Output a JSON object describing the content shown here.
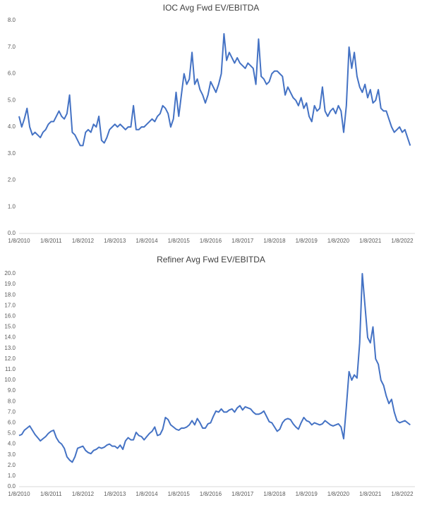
{
  "chart_data": [
    {
      "type": "line",
      "title": "IOC Avg Fwd EV/EBITDA",
      "categories": [
        "1/8/2010",
        null,
        null,
        null,
        null,
        null,
        null,
        null,
        null,
        null,
        null,
        null,
        "1/8/2011",
        null,
        null,
        null,
        null,
        null,
        null,
        null,
        null,
        null,
        null,
        null,
        "1/8/2012",
        null,
        null,
        null,
        null,
        null,
        null,
        null,
        null,
        null,
        null,
        null,
        "1/8/2013",
        null,
        null,
        null,
        null,
        null,
        null,
        null,
        null,
        null,
        null,
        null,
        "1/8/2014",
        null,
        null,
        null,
        null,
        null,
        null,
        null,
        null,
        null,
        null,
        null,
        "1/8/2015",
        null,
        null,
        null,
        null,
        null,
        null,
        null,
        null,
        null,
        null,
        null,
        "1/8/2016",
        null,
        null,
        null,
        null,
        null,
        null,
        null,
        null,
        null,
        null,
        null,
        "1/8/2017",
        null,
        null,
        null,
        null,
        null,
        null,
        null,
        null,
        null,
        null,
        null,
        "1/8/2018",
        null,
        null,
        null,
        null,
        null,
        null,
        null,
        null,
        null,
        null,
        null,
        "1/8/2019",
        null,
        null,
        null,
        null,
        null,
        null,
        null,
        null,
        null,
        null,
        null,
        "1/8/2020",
        null,
        null,
        null,
        null,
        null,
        null,
        null,
        null,
        null,
        null,
        null,
        "1/8/2021",
        null,
        null,
        null,
        null,
        null,
        null,
        null,
        null,
        null,
        null,
        null,
        "1/8/2022",
        null,
        null,
        null
      ],
      "values": [
        4.4,
        4.0,
        4.3,
        4.7,
        4.0,
        3.7,
        3.8,
        3.7,
        3.6,
        3.8,
        3.9,
        4.1,
        4.2,
        4.2,
        4.4,
        4.6,
        4.4,
        4.3,
        4.5,
        5.2,
        3.8,
        3.7,
        3.5,
        3.3,
        3.3,
        3.8,
        3.9,
        3.8,
        4.1,
        4.0,
        4.4,
        3.5,
        3.4,
        3.6,
        3.9,
        4.0,
        4.1,
        4.0,
        4.1,
        4.0,
        3.9,
        4.0,
        4.0,
        4.8,
        3.9,
        3.9,
        4.0,
        4.0,
        4.1,
        4.2,
        4.3,
        4.2,
        4.4,
        4.5,
        4.8,
        4.7,
        4.5,
        4.0,
        4.3,
        5.3,
        4.4,
        5.2,
        6.0,
        5.6,
        5.8,
        6.8,
        5.6,
        5.8,
        5.4,
        5.2,
        4.9,
        5.2,
        5.7,
        5.5,
        5.3,
        5.6,
        6.0,
        7.5,
        6.5,
        6.8,
        6.6,
        6.4,
        6.6,
        6.4,
        6.3,
        6.2,
        6.4,
        6.3,
        6.2,
        5.6,
        7.3,
        5.9,
        5.8,
        5.6,
        5.7,
        6.0,
        6.1,
        6.1,
        6.0,
        5.9,
        5.2,
        5.5,
        5.3,
        5.1,
        5.0,
        4.8,
        5.1,
        4.7,
        4.9,
        4.4,
        4.2,
        4.8,
        4.6,
        4.7,
        5.5,
        4.6,
        4.4,
        4.6,
        4.7,
        4.5,
        4.8,
        4.6,
        3.8,
        4.8,
        7.0,
        6.2,
        6.8,
        5.9,
        5.5,
        5.3,
        5.6,
        5.1,
        5.4,
        4.9,
        5.0,
        5.4,
        4.7,
        4.6,
        4.6,
        4.3,
        4.0,
        3.8,
        3.9,
        4.0,
        3.8,
        3.9,
        3.6,
        3.3
      ],
      "color": "#4472c4",
      "ylim": [
        0,
        8
      ],
      "yticks": [
        {
          "value": 0,
          "label": "0.0"
        },
        {
          "value": 1,
          "label": "1.0"
        },
        {
          "value": 2,
          "label": "2.0"
        },
        {
          "value": 3,
          "label": "3.0"
        },
        {
          "value": 4,
          "label": "4.0"
        },
        {
          "value": 5,
          "label": "5.0"
        },
        {
          "value": 6,
          "label": "6.0"
        },
        {
          "value": 7,
          "label": "7.0"
        },
        {
          "value": 8,
          "label": "8.0"
        }
      ]
    },
    {
      "type": "line",
      "title": "Refiner Avg Fwd EV/EBITDA",
      "categories": [
        "1/8/2010",
        null,
        null,
        null,
        null,
        null,
        null,
        null,
        null,
        null,
        null,
        null,
        "1/8/2011",
        null,
        null,
        null,
        null,
        null,
        null,
        null,
        null,
        null,
        null,
        null,
        "1/8/2012",
        null,
        null,
        null,
        null,
        null,
        null,
        null,
        null,
        null,
        null,
        null,
        "1/8/2013",
        null,
        null,
        null,
        null,
        null,
        null,
        null,
        null,
        null,
        null,
        null,
        "1/8/2014",
        null,
        null,
        null,
        null,
        null,
        null,
        null,
        null,
        null,
        null,
        null,
        "1/8/2015",
        null,
        null,
        null,
        null,
        null,
        null,
        null,
        null,
        null,
        null,
        null,
        "1/8/2016",
        null,
        null,
        null,
        null,
        null,
        null,
        null,
        null,
        null,
        null,
        null,
        "1/8/2017",
        null,
        null,
        null,
        null,
        null,
        null,
        null,
        null,
        null,
        null,
        null,
        "1/8/2018",
        null,
        null,
        null,
        null,
        null,
        null,
        null,
        null,
        null,
        null,
        null,
        "1/8/2019",
        null,
        null,
        null,
        null,
        null,
        null,
        null,
        null,
        null,
        null,
        null,
        "1/8/2020",
        null,
        null,
        null,
        null,
        null,
        null,
        null,
        null,
        null,
        null,
        null,
        "1/8/2021",
        null,
        null,
        null,
        null,
        null,
        null,
        null,
        null,
        null,
        null,
        null,
        "1/8/2022",
        null,
        null,
        null
      ],
      "values": [
        4.8,
        4.9,
        5.3,
        5.5,
        5.7,
        5.3,
        4.9,
        4.6,
        4.3,
        4.5,
        4.7,
        5.0,
        5.2,
        5.3,
        4.6,
        4.2,
        4.0,
        3.6,
        2.8,
        2.5,
        2.3,
        2.8,
        3.6,
        3.7,
        3.8,
        3.4,
        3.2,
        3.1,
        3.4,
        3.5,
        3.7,
        3.6,
        3.7,
        3.9,
        4.0,
        3.8,
        3.8,
        3.6,
        3.9,
        3.5,
        4.3,
        4.6,
        4.4,
        4.4,
        5.1,
        4.8,
        4.7,
        4.4,
        4.7,
        5.0,
        5.2,
        5.6,
        4.8,
        4.9,
        5.4,
        6.5,
        6.3,
        5.8,
        5.6,
        5.4,
        5.3,
        5.5,
        5.5,
        5.6,
        5.8,
        6.2,
        5.8,
        6.4,
        6.0,
        5.5,
        5.5,
        5.9,
        6.0,
        6.6,
        7.1,
        7.0,
        7.3,
        7.0,
        7.0,
        7.2,
        7.3,
        7.0,
        7.4,
        7.6,
        7.2,
        7.5,
        7.4,
        7.3,
        7.0,
        6.8,
        6.8,
        6.9,
        7.1,
        6.6,
        6.1,
        6.0,
        5.6,
        5.2,
        5.4,
        6.0,
        6.3,
        6.4,
        6.3,
        5.9,
        5.6,
        5.4,
        6.0,
        6.5,
        6.2,
        6.1,
        5.8,
        6.0,
        5.9,
        5.8,
        5.9,
        6.2,
        6.0,
        5.8,
        5.7,
        5.8,
        5.9,
        5.6,
        4.5,
        7.5,
        10.8,
        10.0,
        10.5,
        10.2,
        13.5,
        20.0,
        17.0,
        14.0,
        13.5,
        15.0,
        12.0,
        11.5,
        10.0,
        9.5,
        8.5,
        7.8,
        8.2,
        7.0,
        6.2,
        6.0,
        6.1,
        6.2,
        6.0,
        5.8
      ],
      "color": "#4472c4",
      "ylim": [
        0,
        20
      ],
      "yticks": [
        {
          "value": 0,
          "label": "0.0"
        },
        {
          "value": 1,
          "label": "1.0"
        },
        {
          "value": 2,
          "label": "2.0"
        },
        {
          "value": 3,
          "label": "3.0"
        },
        {
          "value": 4,
          "label": "4.0"
        },
        {
          "value": 5,
          "label": "5.0"
        },
        {
          "value": 6,
          "label": "6.0"
        },
        {
          "value": 7,
          "label": "7.0"
        },
        {
          "value": 8,
          "label": "8.0"
        },
        {
          "value": 9,
          "label": "9.0"
        },
        {
          "value": 10,
          "label": "10.0"
        },
        {
          "value": 11,
          "label": "11.0"
        },
        {
          "value": 12,
          "label": "12.0"
        },
        {
          "value": 13,
          "label": "13.0"
        },
        {
          "value": 14,
          "label": "14.0"
        },
        {
          "value": 15,
          "label": "15.0"
        },
        {
          "value": 16,
          "label": "16.0"
        },
        {
          "value": 17,
          "label": "17.0"
        },
        {
          "value": 18,
          "label": "18.0"
        },
        {
          "value": 19,
          "label": "19.0"
        },
        {
          "value": 20,
          "label": "20.0"
        }
      ]
    }
  ]
}
